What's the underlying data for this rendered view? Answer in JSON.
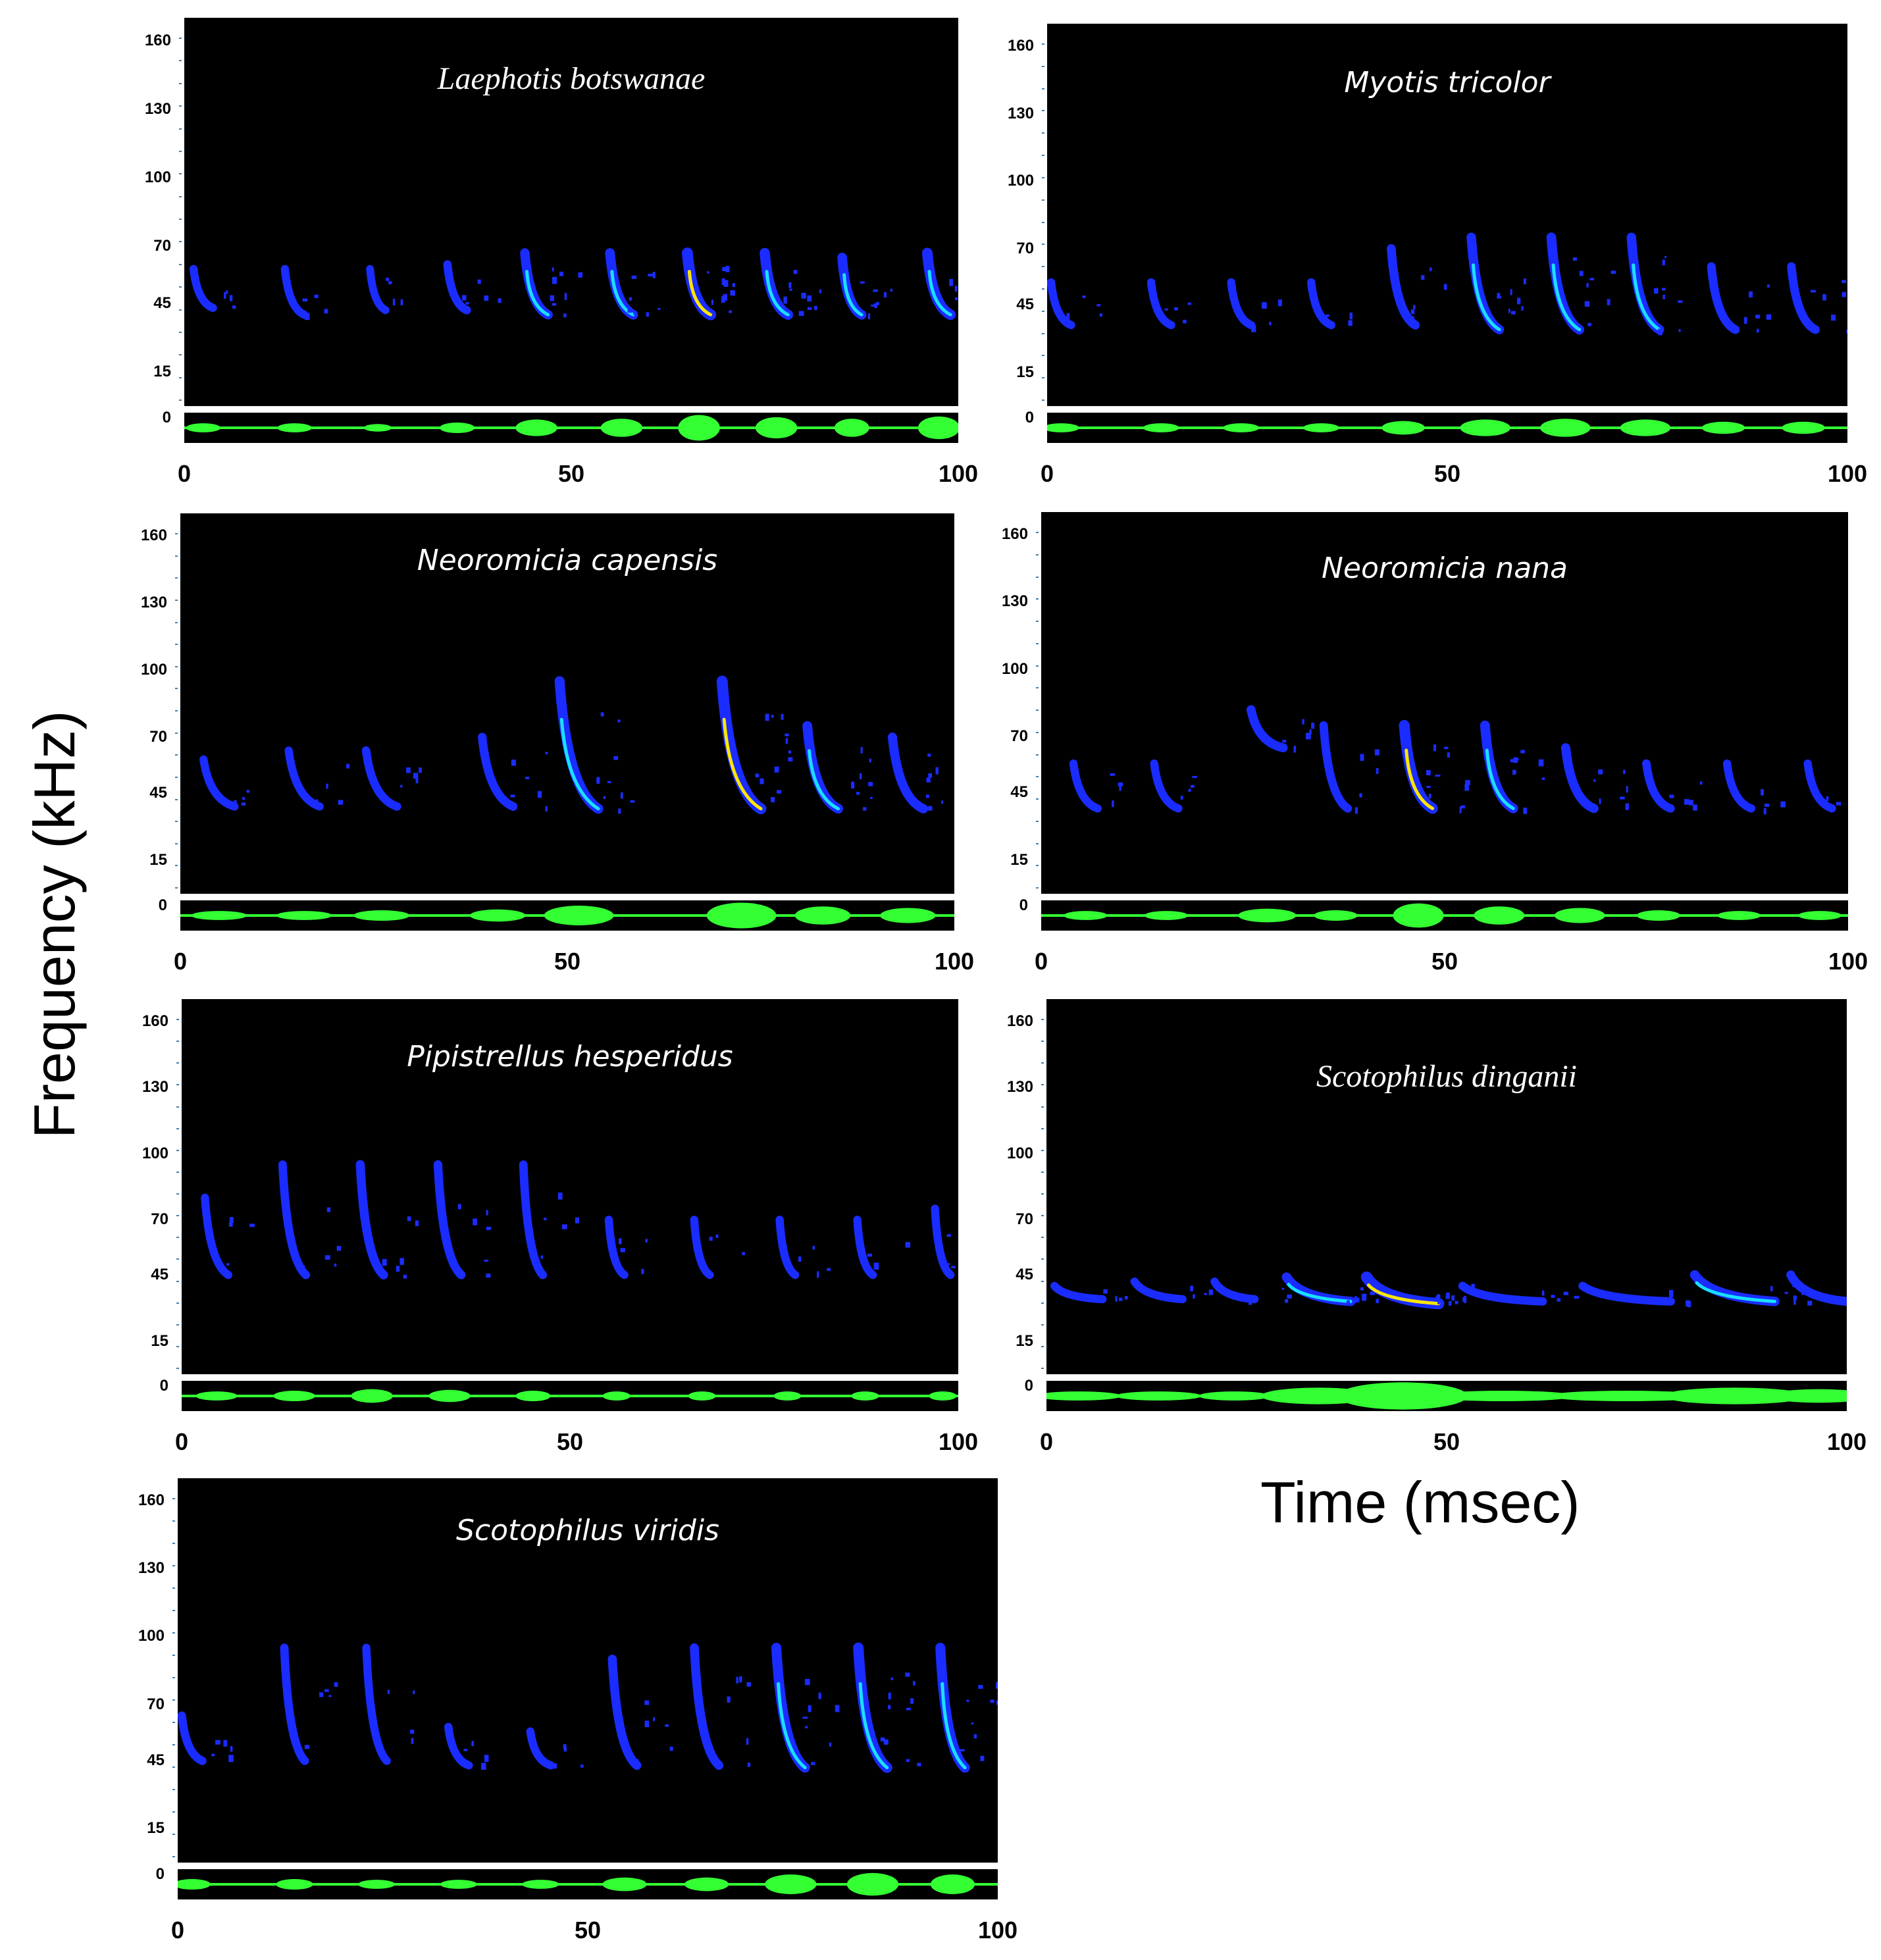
{
  "axis_labels": {
    "y": "Frequency (kHz)",
    "x": "Time (msec)"
  },
  "y_ticks": [
    "160",
    "130",
    "100",
    "70",
    "45",
    "15",
    "0"
  ],
  "x_ticks": [
    "0",
    "50",
    "100"
  ],
  "colors": {
    "background": "#000000",
    "call": "#1a2cff",
    "call_mid": "#19e0ff",
    "call_peak": "#ffe600",
    "waveform": "#33ff33"
  },
  "chart_data": [
    {
      "type": "heatmap",
      "title": "Laephotis botswanae",
      "xlim": [
        0,
        100
      ],
      "ylim": [
        0,
        170
      ],
      "calls": [
        {
          "t": 1.2,
          "fhi": 60,
          "flo": 43,
          "dur": 2.5,
          "intensity": 0.3
        },
        {
          "t": 13,
          "fhi": 60,
          "flo": 40,
          "dur": 2.5,
          "intensity": 0.3
        },
        {
          "t": 24,
          "fhi": 60,
          "flo": 42,
          "dur": 2.0,
          "intensity": 0.25
        },
        {
          "t": 34,
          "fhi": 62,
          "flo": 42,
          "dur": 2.5,
          "intensity": 0.35
        },
        {
          "t": 44,
          "fhi": 67,
          "flo": 40,
          "dur": 3.0,
          "intensity": 0.55
        },
        {
          "t": 55,
          "fhi": 67,
          "flo": 40,
          "dur": 3.0,
          "intensity": 0.6
        },
        {
          "t": 65,
          "fhi": 67,
          "flo": 40,
          "dur": 3.0,
          "intensity": 0.85
        },
        {
          "t": 75,
          "fhi": 67,
          "flo": 40,
          "dur": 3.0,
          "intensity": 0.7
        },
        {
          "t": 85,
          "fhi": 65,
          "flo": 40,
          "dur": 2.5,
          "intensity": 0.6
        },
        {
          "t": 96,
          "fhi": 67,
          "flo": 40,
          "dur": 3.0,
          "intensity": 0.75
        }
      ]
    },
    {
      "type": "heatmap",
      "title": "Myotis tricolor",
      "xlim": [
        0,
        100
      ],
      "ylim": [
        0,
        170
      ],
      "calls": [
        {
          "t": 0.5,
          "fhi": 55,
          "flo": 36,
          "dur": 2.5,
          "intensity": 0.3
        },
        {
          "t": 13,
          "fhi": 55,
          "flo": 36,
          "dur": 2.5,
          "intensity": 0.3
        },
        {
          "t": 23,
          "fhi": 55,
          "flo": 36,
          "dur": 2.5,
          "intensity": 0.3
        },
        {
          "t": 33,
          "fhi": 55,
          "flo": 36,
          "dur": 2.5,
          "intensity": 0.3
        },
        {
          "t": 43,
          "fhi": 70,
          "flo": 36,
          "dur": 3.0,
          "intensity": 0.45
        },
        {
          "t": 53,
          "fhi": 75,
          "flo": 34,
          "dur": 3.5,
          "intensity": 0.55
        },
        {
          "t": 63,
          "fhi": 75,
          "flo": 34,
          "dur": 3.5,
          "intensity": 0.6
        },
        {
          "t": 73,
          "fhi": 75,
          "flo": 34,
          "dur": 3.5,
          "intensity": 0.55
        },
        {
          "t": 83,
          "fhi": 62,
          "flo": 34,
          "dur": 3.0,
          "intensity": 0.4
        },
        {
          "t": 93,
          "fhi": 62,
          "flo": 34,
          "dur": 3.0,
          "intensity": 0.4
        }
      ]
    },
    {
      "type": "heatmap",
      "title": "Neoromicia capensis",
      "xlim": [
        0,
        100
      ],
      "ylim": [
        0,
        170
      ],
      "calls": [
        {
          "t": 3,
          "fhi": 60,
          "flo": 39,
          "dur": 4.0,
          "intensity": 0.3
        },
        {
          "t": 14,
          "fhi": 64,
          "flo": 39,
          "dur": 4.0,
          "intensity": 0.3
        },
        {
          "t": 24,
          "fhi": 64,
          "flo": 39,
          "dur": 4.0,
          "intensity": 0.35
        },
        {
          "t": 39,
          "fhi": 70,
          "flo": 39,
          "dur": 4.0,
          "intensity": 0.4
        },
        {
          "t": 49,
          "fhi": 95,
          "flo": 38,
          "dur": 5.0,
          "intensity": 0.65
        },
        {
          "t": 70,
          "fhi": 95,
          "flo": 38,
          "dur": 5.0,
          "intensity": 0.85
        },
        {
          "t": 81,
          "fhi": 75,
          "flo": 38,
          "dur": 4.0,
          "intensity": 0.6
        },
        {
          "t": 92,
          "fhi": 70,
          "flo": 38,
          "dur": 4.0,
          "intensity": 0.5
        }
      ]
    },
    {
      "type": "heatmap",
      "title": "Neoromicia nana",
      "xlim": [
        0,
        100
      ],
      "ylim": [
        0,
        170
      ],
      "calls": [
        {
          "t": 4,
          "fhi": 58,
          "flo": 38,
          "dur": 3.0,
          "intensity": 0.3
        },
        {
          "t": 14,
          "fhi": 58,
          "flo": 38,
          "dur": 3.0,
          "intensity": 0.3
        },
        {
          "t": 26,
          "fhi": 82,
          "flo": 65,
          "dur": 4.0,
          "intensity": 0.45
        },
        {
          "t": 35,
          "fhi": 75,
          "flo": 38,
          "dur": 3.0,
          "intensity": 0.35
        },
        {
          "t": 45,
          "fhi": 75,
          "flo": 38,
          "dur": 3.5,
          "intensity": 0.8
        },
        {
          "t": 55,
          "fhi": 75,
          "flo": 38,
          "dur": 3.5,
          "intensity": 0.6
        },
        {
          "t": 65,
          "fhi": 65,
          "flo": 38,
          "dur": 3.5,
          "intensity": 0.5
        },
        {
          "t": 75,
          "fhi": 58,
          "flo": 38,
          "dur": 3.0,
          "intensity": 0.35
        },
        {
          "t": 85,
          "fhi": 58,
          "flo": 38,
          "dur": 3.0,
          "intensity": 0.3
        },
        {
          "t": 95,
          "fhi": 58,
          "flo": 38,
          "dur": 3.0,
          "intensity": 0.3
        }
      ]
    },
    {
      "type": "heatmap",
      "title": "Pipistrellus hesperidus",
      "xlim": [
        0,
        100
      ],
      "ylim": [
        0,
        170
      ],
      "calls": [
        {
          "t": 3,
          "fhi": 80,
          "flo": 45,
          "dur": 3.0,
          "intensity": 0.3
        },
        {
          "t": 13,
          "fhi": 95,
          "flo": 45,
          "dur": 3.0,
          "intensity": 0.35
        },
        {
          "t": 23,
          "fhi": 95,
          "flo": 45,
          "dur": 3.0,
          "intensity": 0.45
        },
        {
          "t": 33,
          "fhi": 95,
          "flo": 45,
          "dur": 3.0,
          "intensity": 0.4
        },
        {
          "t": 44,
          "fhi": 95,
          "flo": 45,
          "dur": 2.5,
          "intensity": 0.35
        },
        {
          "t": 55,
          "fhi": 70,
          "flo": 45,
          "dur": 2.0,
          "intensity": 0.3
        },
        {
          "t": 66,
          "fhi": 70,
          "flo": 45,
          "dur": 2.0,
          "intensity": 0.3
        },
        {
          "t": 77,
          "fhi": 70,
          "flo": 45,
          "dur": 2.0,
          "intensity": 0.3
        },
        {
          "t": 87,
          "fhi": 70,
          "flo": 45,
          "dur": 2.0,
          "intensity": 0.3
        },
        {
          "t": 97,
          "fhi": 75,
          "flo": 45,
          "dur": 2.0,
          "intensity": 0.3
        }
      ]
    },
    {
      "type": "heatmap",
      "title": "Scotophilus dinganii",
      "xlim": [
        0,
        100
      ],
      "ylim": [
        0,
        170
      ],
      "calls": [
        {
          "t": 1,
          "fhi": 40,
          "flo": 34,
          "dur": 6.0,
          "intensity": 0.3
        },
        {
          "t": 11,
          "fhi": 42,
          "flo": 34,
          "dur": 6.0,
          "intensity": 0.3
        },
        {
          "t": 21,
          "fhi": 42,
          "flo": 34,
          "dur": 5.0,
          "intensity": 0.3
        },
        {
          "t": 30,
          "fhi": 44,
          "flo": 33,
          "dur": 8.0,
          "intensity": 0.55
        },
        {
          "t": 40,
          "fhi": 44,
          "flo": 32,
          "dur": 9.0,
          "intensity": 0.9
        },
        {
          "t": 52,
          "fhi": 40,
          "flo": 33,
          "dur": 10.0,
          "intensity": 0.35
        },
        {
          "t": 67,
          "fhi": 40,
          "flo": 33,
          "dur": 11.0,
          "intensity": 0.35
        },
        {
          "t": 81,
          "fhi": 45,
          "flo": 33,
          "dur": 10.0,
          "intensity": 0.55
        },
        {
          "t": 93,
          "fhi": 45,
          "flo": 33,
          "dur": 7.0,
          "intensity": 0.45
        }
      ]
    },
    {
      "type": "heatmap",
      "title": "Scotophilus viridis",
      "xlim": [
        0,
        100
      ],
      "ylim": [
        0,
        170
      ],
      "calls": [
        {
          "t": 0.5,
          "fhi": 65,
          "flo": 45,
          "dur": 2.5,
          "intensity": 0.35
        },
        {
          "t": 13,
          "fhi": 95,
          "flo": 45,
          "dur": 2.5,
          "intensity": 0.35
        },
        {
          "t": 23,
          "fhi": 95,
          "flo": 45,
          "dur": 2.5,
          "intensity": 0.3
        },
        {
          "t": 33,
          "fhi": 60,
          "flo": 43,
          "dur": 2.5,
          "intensity": 0.3
        },
        {
          "t": 43,
          "fhi": 58,
          "flo": 43,
          "dur": 2.5,
          "intensity": 0.3
        },
        {
          "t": 53,
          "fhi": 90,
          "flo": 43,
          "dur": 3.0,
          "intensity": 0.45
        },
        {
          "t": 63,
          "fhi": 95,
          "flo": 43,
          "dur": 3.0,
          "intensity": 0.45
        },
        {
          "t": 73,
          "fhi": 95,
          "flo": 42,
          "dur": 3.5,
          "intensity": 0.65
        },
        {
          "t": 83,
          "fhi": 95,
          "flo": 42,
          "dur": 3.5,
          "intensity": 0.75
        },
        {
          "t": 93,
          "fhi": 95,
          "flo": 42,
          "dur": 3.0,
          "intensity": 0.65
        }
      ]
    }
  ]
}
